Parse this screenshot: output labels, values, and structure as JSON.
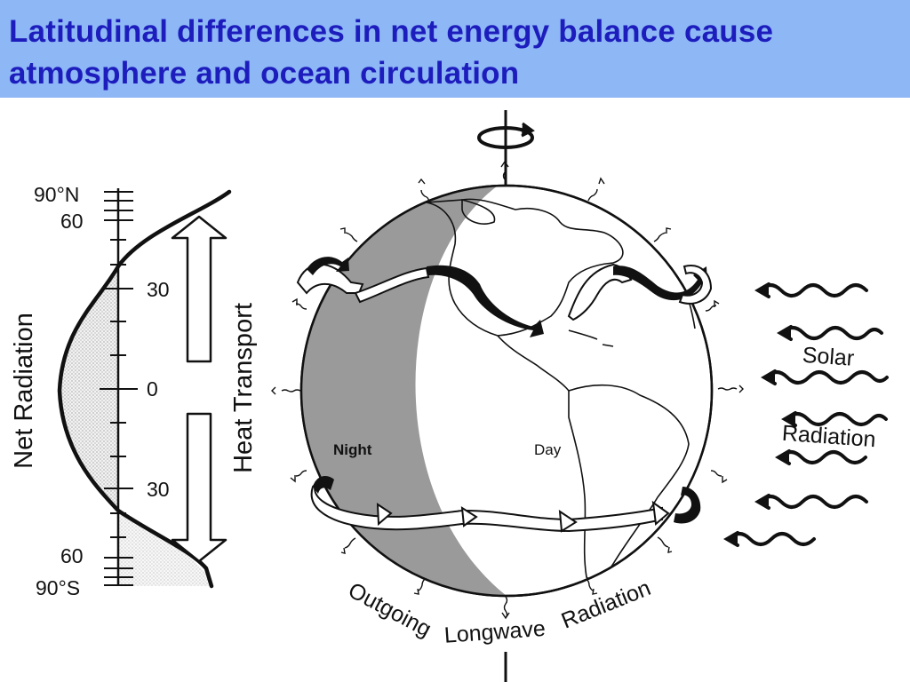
{
  "title": {
    "line1": "Latitudinal differences in net energy balance cause",
    "line2": "atmosphere and ocean circulation"
  },
  "latitude_axis": {
    "labels": [
      "90°N",
      "60",
      "30",
      "0",
      "30",
      "60",
      "90°S"
    ]
  },
  "net_radiation_label": "Net Radiation",
  "heat_transport_label": "Heat Transport",
  "globe": {
    "night_label": "Night",
    "day_label": "Day"
  },
  "solar_radiation": {
    "line1": "Solar",
    "line2": "Radiation"
  },
  "outgoing_longwave": {
    "word1": "Outgoing",
    "word2": "Longwave",
    "word3": "Radiation"
  },
  "colors": {
    "title_bar": "#8db7f5",
    "title_text": "#1d1dbd",
    "night_shading": "#9a9a9a",
    "surplus_shading": "#dcdcdc"
  }
}
